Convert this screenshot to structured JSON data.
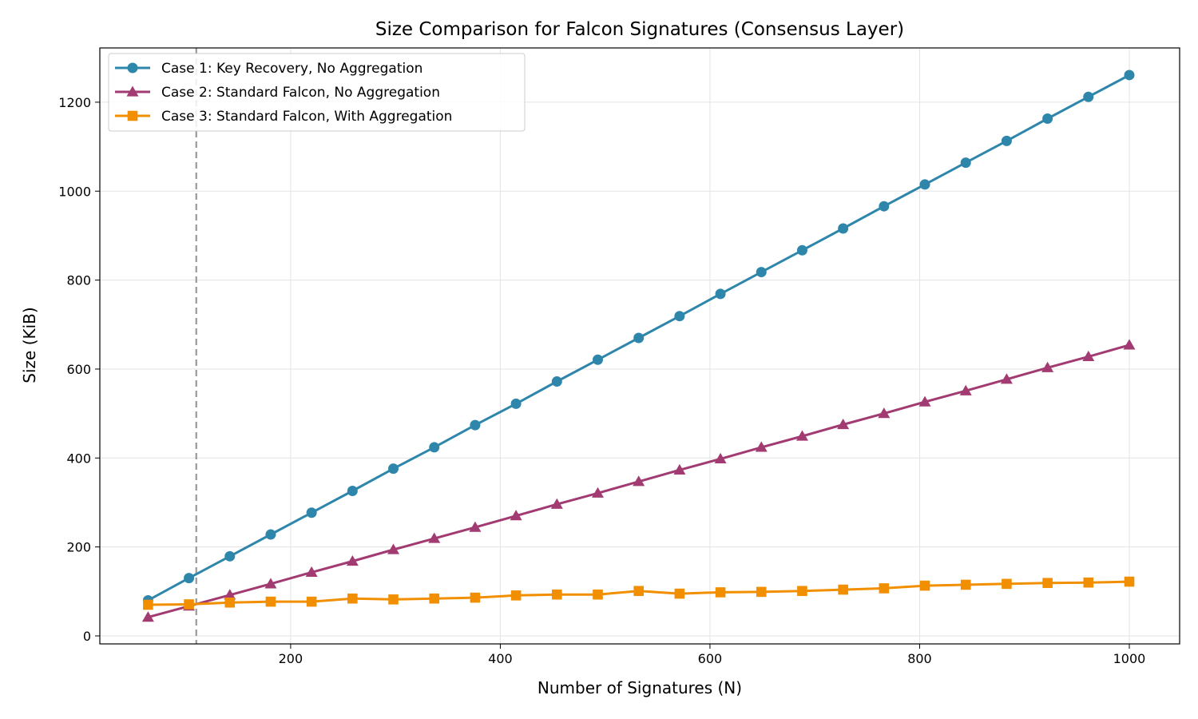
{
  "chart_data": {
    "type": "line",
    "title": "Size Comparison for Falcon Signatures (Consensus Layer)",
    "xlabel": "Number of Signatures (N)",
    "ylabel": "Size (KiB)",
    "xlim": [
      18,
      1048
    ],
    "ylim": [
      -18,
      1322
    ],
    "xticks": [
      200,
      400,
      600,
      800,
      1000
    ],
    "yticks": [
      0,
      200,
      400,
      600,
      800,
      1000,
      1200
    ],
    "grid": true,
    "legend_position": "top-left",
    "vline_x": 110,
    "x": [
      64,
      103,
      142,
      181,
      220,
      259,
      298,
      337,
      376,
      415,
      454,
      493,
      532,
      571,
      610,
      649,
      688,
      727,
      766,
      805,
      844,
      883,
      922,
      961,
      1000
    ],
    "series": [
      {
        "name": "Case 1: Key Recovery, No Aggregation",
        "color": "#2e86ab",
        "marker": "circle",
        "values": [
          80,
          130,
          179,
          228,
          277,
          326,
          376,
          424,
          474,
          522,
          572,
          621,
          670,
          719,
          769,
          818,
          867,
          916,
          966,
          1015,
          1064,
          1113,
          1163,
          1212,
          1261
        ]
      },
      {
        "name": "Case 2: Standard Falcon, No Aggregation",
        "color": "#a23b72",
        "marker": "triangle",
        "values": [
          42,
          67,
          92,
          117,
          143,
          168,
          194,
          219,
          244,
          270,
          296,
          321,
          347,
          373,
          398,
          424,
          449,
          475,
          500,
          526,
          551,
          577,
          603,
          628,
          654
        ]
      },
      {
        "name": "Case 3: Standard Falcon, With Aggregation",
        "color": "#f18f01",
        "marker": "square",
        "values": [
          70,
          71,
          75,
          77,
          77,
          84,
          82,
          84,
          86,
          91,
          93,
          93,
          101,
          95,
          98,
          99,
          101,
          104,
          107,
          113,
          115,
          117,
          119,
          120,
          122
        ]
      }
    ]
  }
}
